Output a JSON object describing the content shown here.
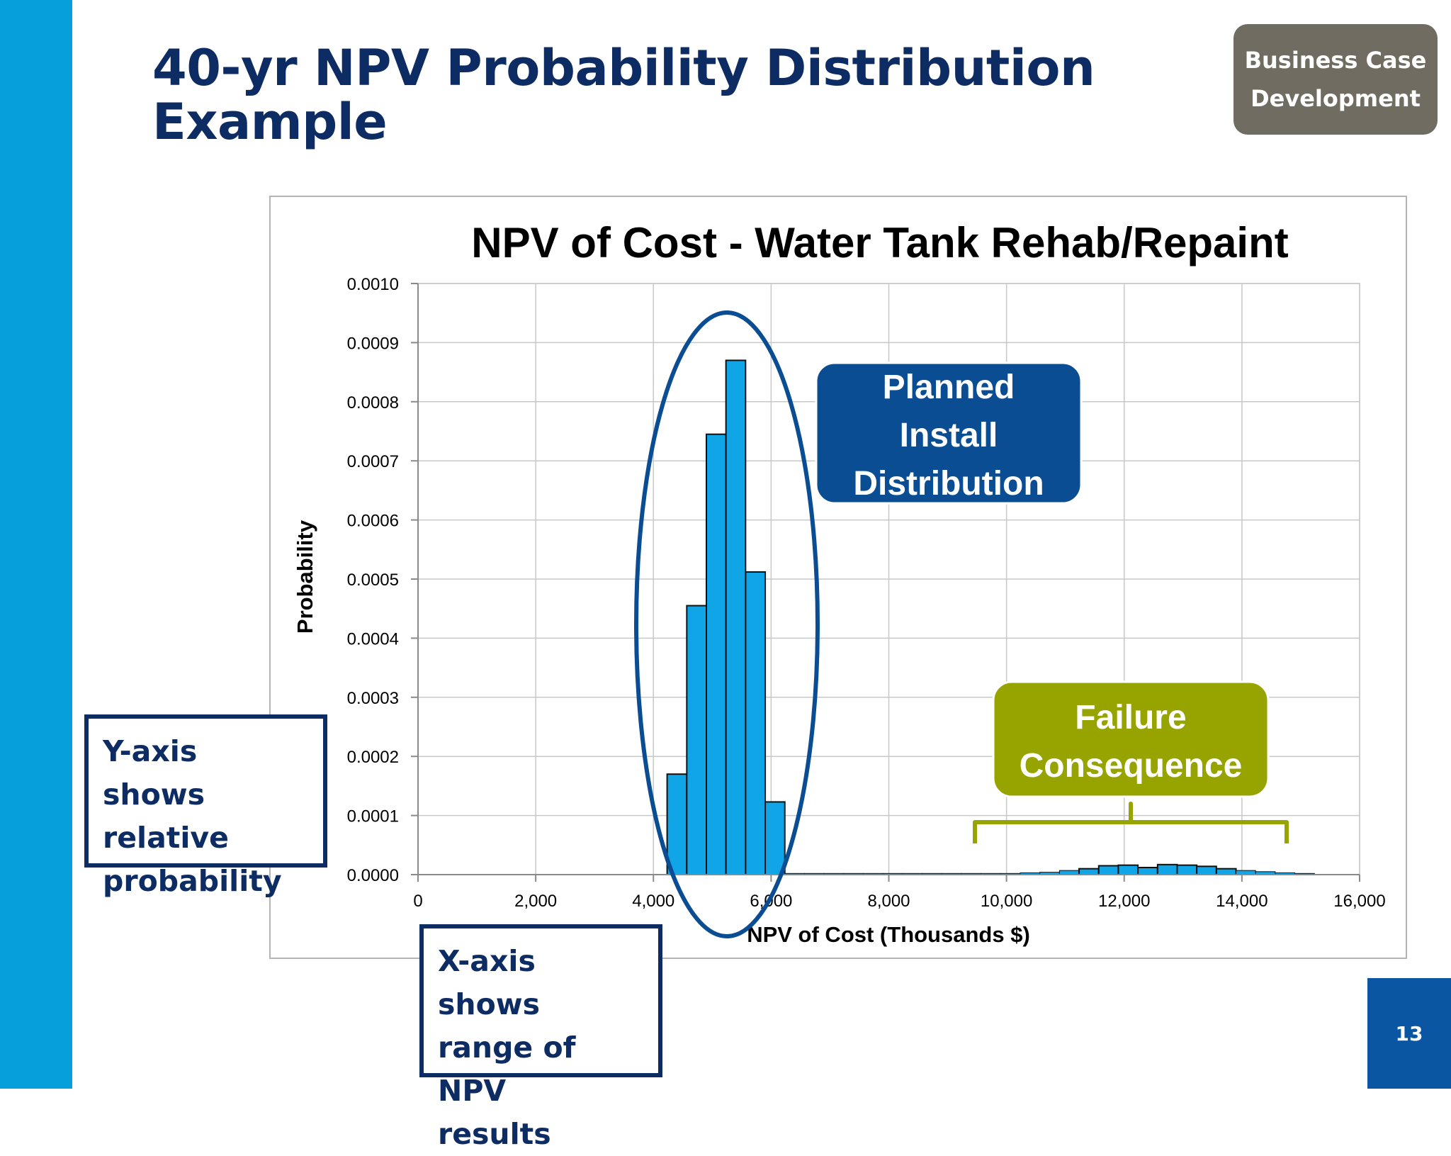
{
  "slide": {
    "title_line1": "40-yr NPV Probability Distribution",
    "title_line2": "Example",
    "section_badge_line1": "Business Case",
    "section_badge_line2": "Development",
    "page_number": "13"
  },
  "callouts": {
    "y_axis_line1": "Y-axis shows",
    "y_axis_line2": "relative",
    "y_axis_line3": "probability",
    "x_axis_line1": "X-axis shows",
    "x_axis_line2": "range of NPV",
    "x_axis_line3": "results"
  },
  "annotations": {
    "planned_line1": "Planned",
    "planned_line2": "Install",
    "planned_line3": "Distribution",
    "failure_line1": "Failure",
    "failure_line2": "Consequence"
  },
  "colors": {
    "bar_fill": "#0fa5e6",
    "planned_box": "#0a4d93",
    "failure_box": "#97a400",
    "ellipse": "#0a4d93",
    "title": "#0d2c63"
  },
  "chart_data": {
    "type": "bar",
    "title": "NPV of Cost - Water Tank Rehab/Repaint",
    "xlabel": "NPV of Cost (Thousands $)",
    "ylabel": "Probability",
    "xlim": [
      0,
      16000
    ],
    "ylim": [
      0,
      0.001
    ],
    "grid": true,
    "xticks": [
      0,
      2000,
      4000,
      6000,
      8000,
      10000,
      12000,
      14000,
      16000
    ],
    "xtick_labels": [
      "0",
      "2,000",
      "4,000",
      "6,000",
      "8,000",
      "10,000",
      "12,000",
      "14,000",
      "16,000"
    ],
    "yticks": [
      0,
      0.0001,
      0.0002,
      0.0003,
      0.0004,
      0.0005,
      0.0006,
      0.0007,
      0.0008,
      0.0009,
      0.001
    ],
    "ytick_labels": [
      "0.0000",
      "0.0001",
      "0.0002",
      "0.0003",
      "0.0004",
      "0.0005",
      "0.0006",
      "0.0007",
      "0.0008",
      "0.0009",
      "0.0010"
    ],
    "bin_width": 333,
    "bin_starts": [
      4233,
      4567,
      4900,
      5233,
      5567,
      5900,
      6233,
      6567,
      6900,
      7233,
      7567,
      7900,
      8233,
      8567,
      8900,
      9233,
      9567,
      9900,
      10233,
      10567,
      10900,
      11233,
      11567,
      11900,
      12233,
      12567,
      12900,
      13233,
      13567,
      13900,
      14233,
      14567,
      14900
    ],
    "values": [
      0.00017,
      0.000455,
      0.000745,
      0.00087,
      0.000512,
      0.000123,
      2e-06,
      2e-06,
      2e-06,
      2e-06,
      2e-06,
      2e-06,
      2e-06,
      2e-06,
      2e-06,
      2e-06,
      2e-06,
      2e-06,
      3e-06,
      4e-06,
      7e-06,
      1e-05,
      1.5e-05,
      1.6e-05,
      1.2e-05,
      1.7e-05,
      1.6e-05,
      1.4e-05,
      1e-05,
      7e-06,
      5e-06,
      3e-06,
      2e-06
    ]
  }
}
